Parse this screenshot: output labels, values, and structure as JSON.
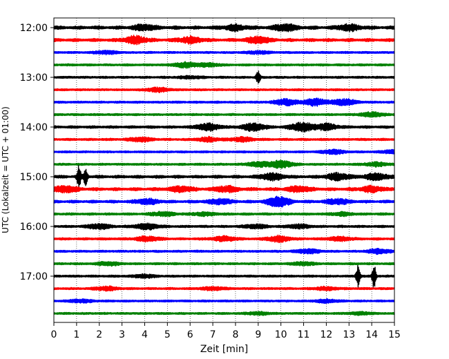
{
  "chart_data": {
    "type": "line",
    "subtype": "helicorder",
    "title": "",
    "xlabel": "Zeit  [min]",
    "ylabel": "UTC (Lokalzeit = UTC + 01:00)",
    "xlim": [
      0,
      15
    ],
    "x_ticks": [
      "0",
      "1",
      "2",
      "3",
      "4",
      "5",
      "6",
      "7",
      "8",
      "9",
      "10",
      "11",
      "12",
      "13",
      "14",
      "15"
    ],
    "y_ticks": [
      "12:00",
      "13:00",
      "14:00",
      "15:00",
      "16:00",
      "17:00"
    ],
    "grid": "vertical dotted",
    "trace_interval_minutes": 15,
    "first_trace": "12:00",
    "trace_count": 24,
    "colors": [
      "#000000",
      "#ff0000",
      "#0000ff",
      "#008000"
    ],
    "traces": [
      {
        "start": "12:00",
        "color": "#000000",
        "noise": 0.45,
        "bursts": [
          [
            4.0,
            1.0
          ],
          [
            8.0,
            1.0
          ],
          [
            10.2,
            1.2
          ],
          [
            13.0,
            1.2
          ]
        ]
      },
      {
        "start": "12:15",
        "color": "#ff0000",
        "noise": 0.4,
        "bursts": [
          [
            3.6,
            1.4
          ],
          [
            6.0,
            1.2
          ],
          [
            9.0,
            1.2
          ]
        ]
      },
      {
        "start": "12:30",
        "color": "#0000ff",
        "noise": 0.12,
        "bursts": [
          [
            2.3,
            0.6
          ],
          [
            9.0,
            0.5
          ]
        ]
      },
      {
        "start": "12:45",
        "color": "#008000",
        "noise": 0.15,
        "bursts": [
          [
            5.8,
            1.0
          ],
          [
            6.8,
            0.6
          ]
        ]
      },
      {
        "start": "13:00",
        "color": "#000000",
        "noise": 0.15,
        "bursts": [
          [
            9.0,
            2.6
          ],
          [
            6.0,
            0.4
          ]
        ]
      },
      {
        "start": "13:15",
        "color": "#ff0000",
        "noise": 0.12,
        "bursts": [
          [
            4.6,
            0.8
          ]
        ]
      },
      {
        "start": "13:30",
        "color": "#0000ff",
        "noise": 0.15,
        "bursts": [
          [
            10.2,
            1.2
          ],
          [
            11.5,
            1.4
          ],
          [
            12.8,
            1.2
          ]
        ]
      },
      {
        "start": "13:45",
        "color": "#008000",
        "noise": 0.15,
        "bursts": [
          [
            14.0,
            0.9
          ]
        ]
      },
      {
        "start": "14:00",
        "color": "#000000",
        "noise": 0.25,
        "bursts": [
          [
            6.8,
            1.3
          ],
          [
            8.8,
            1.4
          ],
          [
            10.9,
            1.7
          ],
          [
            12.0,
            1.2
          ]
        ]
      },
      {
        "start": "14:15",
        "color": "#ff0000",
        "noise": 0.18,
        "bursts": [
          [
            3.8,
            0.8
          ],
          [
            6.8,
            0.8
          ],
          [
            8.3,
            0.8
          ]
        ]
      },
      {
        "start": "14:30",
        "color": "#0000ff",
        "noise": 0.12,
        "bursts": [
          [
            12.3,
            0.8
          ],
          [
            15.0,
            0.8
          ]
        ]
      },
      {
        "start": "14:45",
        "color": "#008000",
        "noise": 0.15,
        "bursts": [
          [
            9.0,
            0.9
          ],
          [
            10.0,
            1.4
          ],
          [
            14.2,
            0.7
          ]
        ]
      },
      {
        "start": "15:00",
        "color": "#000000",
        "noise": 0.35,
        "bursts": [
          [
            1.1,
            4.2
          ],
          [
            1.4,
            3.6
          ],
          [
            9.6,
            1.3
          ],
          [
            12.5,
            1.3
          ],
          [
            14.2,
            1.3
          ]
        ]
      },
      {
        "start": "15:15",
        "color": "#ff0000",
        "noise": 0.4,
        "bursts": [
          [
            0.5,
            1.2
          ],
          [
            5.6,
            1.0
          ],
          [
            7.6,
            1.1
          ],
          [
            10.8,
            1.0
          ],
          [
            14.0,
            1.0
          ]
        ]
      },
      {
        "start": "15:30",
        "color": "#0000ff",
        "noise": 0.3,
        "bursts": [
          [
            4.1,
            1.0
          ],
          [
            7.3,
            1.0
          ],
          [
            9.9,
            2.0
          ],
          [
            12.5,
            1.0
          ]
        ]
      },
      {
        "start": "15:45",
        "color": "#008000",
        "noise": 0.2,
        "bursts": [
          [
            4.8,
            0.8
          ],
          [
            6.6,
            0.6
          ],
          [
            12.7,
            0.6
          ]
        ]
      },
      {
        "start": "16:00",
        "color": "#000000",
        "noise": 0.2,
        "bursts": [
          [
            2.0,
            1.0
          ],
          [
            4.1,
            1.2
          ],
          [
            8.9,
            0.7
          ],
          [
            10.8,
            0.7
          ]
        ]
      },
      {
        "start": "16:15",
        "color": "#ff0000",
        "noise": 0.2,
        "bursts": [
          [
            4.1,
            0.9
          ],
          [
            7.5,
            0.9
          ],
          [
            9.9,
            1.1
          ],
          [
            12.6,
            0.8
          ]
        ]
      },
      {
        "start": "16:30",
        "color": "#0000ff",
        "noise": 0.15,
        "bursts": [
          [
            11.2,
            0.8
          ],
          [
            14.3,
            0.9
          ]
        ]
      },
      {
        "start": "16:45",
        "color": "#008000",
        "noise": 0.15,
        "bursts": [
          [
            2.4,
            0.7
          ],
          [
            11.0,
            0.6
          ]
        ]
      },
      {
        "start": "17:00",
        "color": "#000000",
        "noise": 0.15,
        "bursts": [
          [
            13.4,
            4.4
          ],
          [
            14.1,
            4.8
          ],
          [
            4.0,
            0.6
          ]
        ]
      },
      {
        "start": "17:15",
        "color": "#ff0000",
        "noise": 0.15,
        "bursts": [
          [
            2.3,
            0.7
          ],
          [
            7.0,
            0.6
          ],
          [
            12.0,
            0.6
          ]
        ]
      },
      {
        "start": "17:30",
        "color": "#0000ff",
        "noise": 0.12,
        "bursts": [
          [
            1.2,
            0.6
          ],
          [
            12.0,
            0.6
          ]
        ]
      },
      {
        "start": "17:45",
        "color": "#008000",
        "noise": 0.12,
        "bursts": [
          [
            9.0,
            0.5
          ],
          [
            13.5,
            0.5
          ]
        ]
      }
    ]
  }
}
